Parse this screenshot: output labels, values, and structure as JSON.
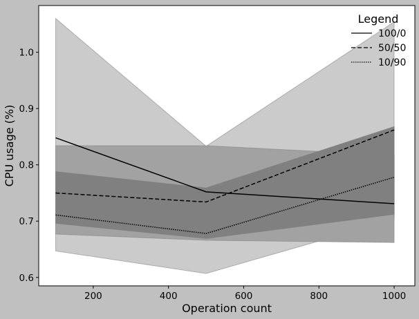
{
  "chart_data": {
    "type": "line",
    "xlabel": "Operation count",
    "ylabel": "CPU usage (%)",
    "xlim": [
      55,
      1055
    ],
    "ylim": [
      0.585,
      1.083
    ],
    "xticks": [
      200,
      400,
      600,
      800,
      1000
    ],
    "yticks": [
      0.6,
      0.7,
      0.8,
      0.9,
      1.0
    ],
    "grid": false,
    "legend": {
      "title": "Legend",
      "placement": "top-right"
    },
    "x": [
      100,
      500,
      1000
    ],
    "series": [
      {
        "name": "100/0",
        "style": "solid",
        "values": [
          0.848,
          0.752,
          0.731
        ],
        "band_low": [
          0.647,
          0.607,
          0.703
        ],
        "band_high": [
          1.06,
          0.833,
          1.054
        ],
        "band_color": "#cbcbcb"
      },
      {
        "name": "50/50",
        "style": "dashed",
        "values": [
          0.75,
          0.734,
          0.862
        ],
        "band_low": [
          0.677,
          0.666,
          0.662
        ],
        "band_high": [
          0.834,
          0.834,
          0.817
        ],
        "band_color": "#a2a2a2"
      },
      {
        "name": "10/90",
        "style": "dotted",
        "values": [
          0.711,
          0.678,
          0.778
        ],
        "band_low": [
          0.696,
          0.669,
          0.712
        ],
        "band_high": [
          0.788,
          0.759,
          0.868
        ],
        "band_color": "#808080"
      }
    ]
  }
}
